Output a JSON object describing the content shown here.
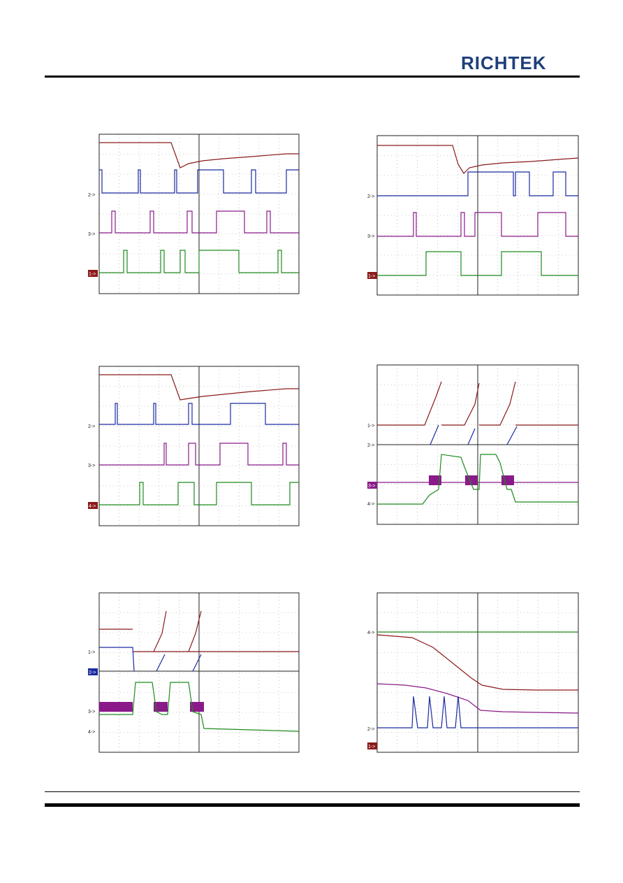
{
  "header": {
    "logo_text": "RICHTEK"
  },
  "colors": {
    "ch1": "#8b1a1a",
    "ch2": "#1a2aa0",
    "ch3": "#8a1a8a",
    "ch4": "#1e8a1e",
    "grid": "#555555",
    "frame": "#222222"
  },
  "scopes": [
    {
      "id": "scope-1",
      "markers": [
        {
          "label": "2->"
        },
        {
          "label": "3->"
        },
        {
          "label": "1->",
          "box": "#8b1a1a"
        }
      ]
    },
    {
      "id": "scope-2",
      "markers": [
        {
          "label": "2->"
        },
        {
          "label": "3->"
        },
        {
          "label": "1->",
          "box": "#8b1a1a"
        }
      ]
    },
    {
      "id": "scope-3",
      "markers": [
        {
          "label": "2->"
        },
        {
          "label": "3->"
        },
        {
          "label": "4->",
          "box": "#8b1a1a"
        }
      ]
    },
    {
      "id": "scope-4",
      "markers": [
        {
          "label": "1->"
        },
        {
          "label": "2->"
        },
        {
          "label": "3->",
          "box": "#8a1a8a"
        },
        {
          "label": "4->"
        }
      ]
    },
    {
      "id": "scope-5",
      "markers": [
        {
          "label": "1->"
        },
        {
          "label": "2->",
          "box": "#1a2aa0"
        },
        {
          "label": "3->"
        },
        {
          "label": "4->"
        }
      ]
    },
    {
      "id": "scope-6",
      "markers": [
        {
          "label": "4->"
        },
        {
          "label": "2->"
        },
        {
          "label": "1->",
          "box": "#8b1a1a"
        }
      ]
    }
  ]
}
